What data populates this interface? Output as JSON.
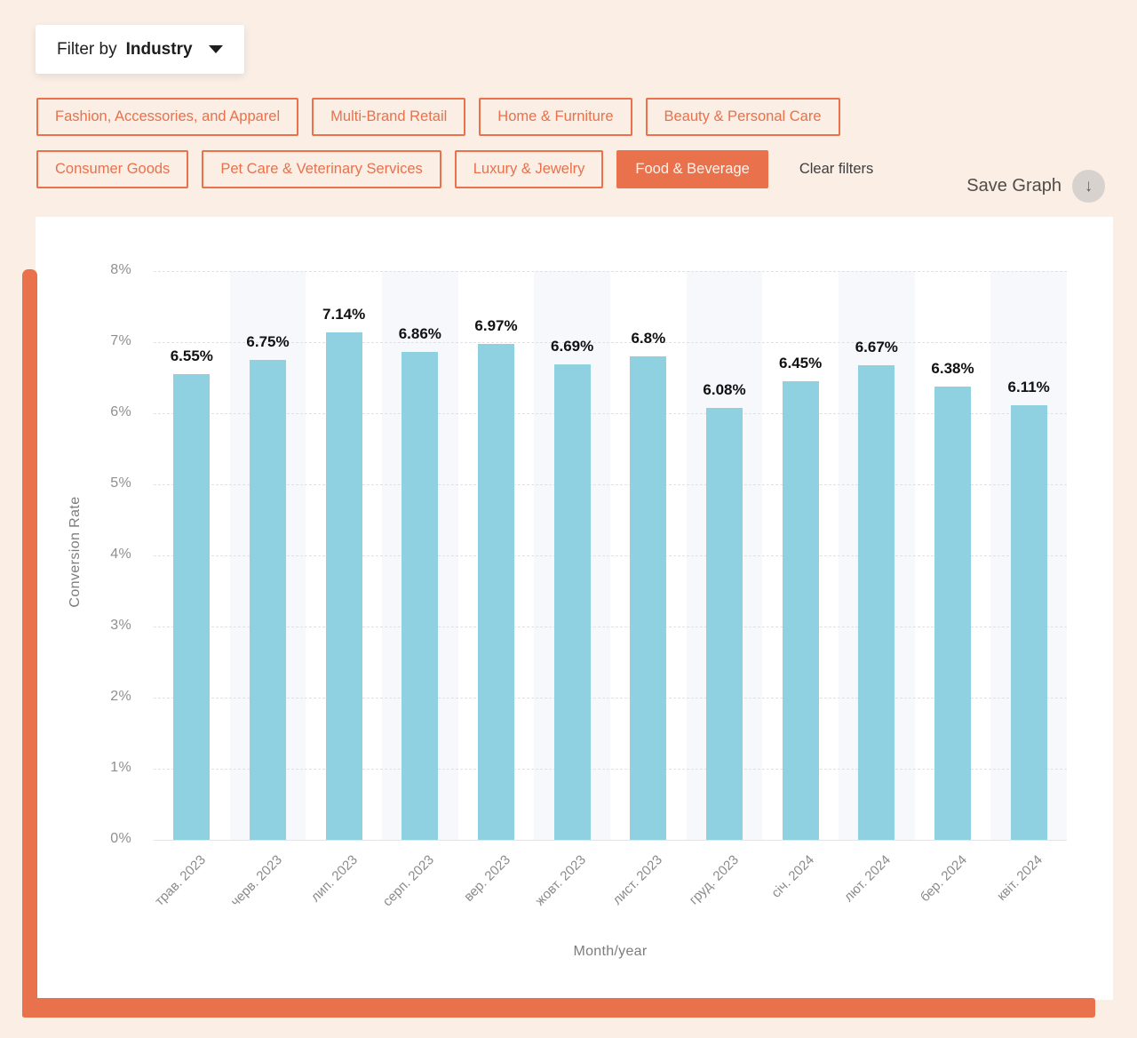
{
  "filter_bar": {
    "dropdown": {
      "prefix": "Filter by",
      "value": "Industry"
    },
    "chips": [
      {
        "label": "Fashion, Accessories, and Apparel",
        "selected": false
      },
      {
        "label": "Multi-Brand Retail",
        "selected": false
      },
      {
        "label": "Home & Furniture",
        "selected": false
      },
      {
        "label": "Beauty & Personal Care",
        "selected": false
      },
      {
        "label": "Consumer Goods",
        "selected": false
      },
      {
        "label": "Pet Care & Veterinary Services",
        "selected": false
      },
      {
        "label": "Luxury & Jewelry",
        "selected": false
      },
      {
        "label": "Food & Beverage",
        "selected": true
      }
    ],
    "clear_label": "Clear filters"
  },
  "toolbar": {
    "save_label": "Save Graph",
    "save_icon": "download-arrow",
    "save_icon_glyph": "↓"
  },
  "chart_data": {
    "type": "bar",
    "title": "",
    "xlabel": "Month/year",
    "ylabel": "Conversion Rate",
    "categories": [
      "трав. 2023",
      "черв. 2023",
      "лип. 2023",
      "серп. 2023",
      "вер. 2023",
      "жовт. 2023",
      "лист. 2023",
      "груд. 2023",
      "січ. 2024",
      "лют. 2024",
      "бер. 2024",
      "квіт. 2024"
    ],
    "values": [
      6.55,
      6.75,
      7.14,
      6.86,
      6.97,
      6.69,
      6.8,
      6.08,
      6.45,
      6.67,
      6.38,
      6.11
    ],
    "value_labels": [
      "6.55%",
      "6.75%",
      "7.14%",
      "6.86%",
      "6.97%",
      "6.69%",
      "6.8%",
      "6.08%",
      "6.45%",
      "6.67%",
      "6.38%",
      "6.11%"
    ],
    "yticks": [
      "0%",
      "1%",
      "2%",
      "3%",
      "4%",
      "5%",
      "6%",
      "7%",
      "8%"
    ],
    "ylim": [
      0,
      8
    ],
    "grid": true,
    "legend": "none",
    "bar_color": "#8fd1e0",
    "band_color": "#f6f8fc",
    "alternating_bands": true
  },
  "colors": {
    "accent_orange": "#e9714b",
    "page_background": "#faeee5",
    "card_background": "#ffffff"
  }
}
